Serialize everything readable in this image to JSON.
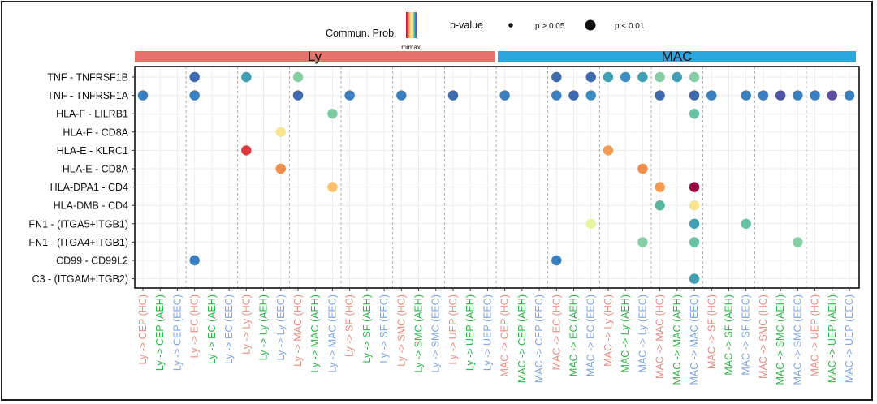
{
  "chart_data": {
    "type": "scatter",
    "subtype": "dot-matrix",
    "legend": {
      "color_title": "Commun. Prob.",
      "color_scale_label": "mimax",
      "size_title": "p-value",
      "size_levels": [
        "p > 0.05",
        "p < 0.01"
      ]
    },
    "groups": [
      {
        "name": "Ly",
        "color": "#e2726a",
        "col_start": 0,
        "col_end": 20
      },
      {
        "name": "MAC",
        "color": "#2aa6dc",
        "col_start": 21,
        "col_end": 41
      }
    ],
    "rows": [
      "TNF - TNFRSF1B",
      "TNF - TNFRSF1A",
      "HLA-F - LILRB1",
      "HLA-F - CD8A",
      "HLA-E - KLRC1",
      "HLA-E - CD8A",
      "HLA-DPA1 - CD4",
      "HLA-DMB - CD4",
      "FN1 - (ITGA5+ITGB1)",
      "FN1 - (ITGA4+ITGB1)",
      "CD99 - CD99L2",
      "C3 - (ITGAM+ITGB2)"
    ],
    "columns": [
      {
        "label": "Ly -> CEP (HC)",
        "color": "#ef8a80"
      },
      {
        "label": "Ly -> CEP (AEH)",
        "color": "#2db84a"
      },
      {
        "label": "Ly -> CEP (EEC)",
        "color": "#7fa6e8"
      },
      {
        "label": "Ly -> EC (HC)",
        "color": "#ef8a80"
      },
      {
        "label": "Ly -> EC (AEH)",
        "color": "#2db84a"
      },
      {
        "label": "Ly -> EC (EEC)",
        "color": "#7fa6e8"
      },
      {
        "label": "Ly -> Ly (HC)",
        "color": "#ef8a80"
      },
      {
        "label": "Ly -> Ly (AEH)",
        "color": "#2db84a"
      },
      {
        "label": "Ly -> Ly (EEC)",
        "color": "#7fa6e8"
      },
      {
        "label": "Ly -> MAC (HC)",
        "color": "#ef8a80"
      },
      {
        "label": "Ly -> MAC (AEH)",
        "color": "#2db84a"
      },
      {
        "label": "Ly -> MAC (EEC)",
        "color": "#7fa6e8"
      },
      {
        "label": "Ly -> SF (HC)",
        "color": "#ef8a80"
      },
      {
        "label": "Ly -> SF (AEH)",
        "color": "#2db84a"
      },
      {
        "label": "Ly -> SF (EEC)",
        "color": "#7fa6e8"
      },
      {
        "label": "Ly -> SMC (HC)",
        "color": "#ef8a80"
      },
      {
        "label": "Ly -> SMC (AEH)",
        "color": "#2db84a"
      },
      {
        "label": "Ly -> SMC (EEC)",
        "color": "#7fa6e8"
      },
      {
        "label": "Ly -> UEP (HC)",
        "color": "#ef8a80"
      },
      {
        "label": "Ly -> UEP (AEH)",
        "color": "#2db84a"
      },
      {
        "label": "Ly -> UEP (EEC)",
        "color": "#7fa6e8"
      },
      {
        "label": "MAC -> CEP (HC)",
        "color": "#ef8a80"
      },
      {
        "label": "MAC -> CEP (AEH)",
        "color": "#2db84a"
      },
      {
        "label": "MAC -> CEP (EEC)",
        "color": "#7fa6e8"
      },
      {
        "label": "MAC -> EC (HC)",
        "color": "#ef8a80"
      },
      {
        "label": "MAC -> EC (AEH)",
        "color": "#2db84a"
      },
      {
        "label": "MAC -> EC (EEC)",
        "color": "#7fa6e8"
      },
      {
        "label": "MAC -> Ly (HC)",
        "color": "#ef8a80"
      },
      {
        "label": "MAC -> Ly (AEH)",
        "color": "#2db84a"
      },
      {
        "label": "MAC -> Ly (EEC)",
        "color": "#7fa6e8"
      },
      {
        "label": "MAC -> MAC (HC)",
        "color": "#ef8a80"
      },
      {
        "label": "MAC -> MAC (AEH)",
        "color": "#2db84a"
      },
      {
        "label": "MAC -> MAC (EEC)",
        "color": "#7fa6e8"
      },
      {
        "label": "MAC -> SF (HC)",
        "color": "#ef8a80"
      },
      {
        "label": "MAC -> SF (AEH)",
        "color": "#2db84a"
      },
      {
        "label": "MAC -> SF (EEC)",
        "color": "#7fa6e8"
      },
      {
        "label": "MAC -> SMC (HC)",
        "color": "#ef8a80"
      },
      {
        "label": "MAC -> SMC (AEH)",
        "color": "#2db84a"
      },
      {
        "label": "MAC -> SMC (EEC)",
        "color": "#7fa6e8"
      },
      {
        "label": "MAC -> UEP (HC)",
        "color": "#ef8a80"
      },
      {
        "label": "MAC -> UEP (AEH)",
        "color": "#2db84a"
      },
      {
        "label": "MAC -> UEP (EEC)",
        "color": "#7fa6e8"
      }
    ],
    "points": [
      {
        "row": 0,
        "col": 3,
        "color": "#3e6bb0",
        "pval": "p < 0.01"
      },
      {
        "row": 0,
        "col": 6,
        "color": "#3f9fb4",
        "pval": "p < 0.01"
      },
      {
        "row": 0,
        "col": 9,
        "color": "#86cfa4",
        "pval": "p < 0.01"
      },
      {
        "row": 0,
        "col": 24,
        "color": "#3e6bb0",
        "pval": "p < 0.01"
      },
      {
        "row": 0,
        "col": 26,
        "color": "#3e6bb0",
        "pval": "p < 0.01"
      },
      {
        "row": 0,
        "col": 27,
        "color": "#3f9fb4",
        "pval": "p < 0.01"
      },
      {
        "row": 0,
        "col": 28,
        "color": "#3a8cc2",
        "pval": "p < 0.01"
      },
      {
        "row": 0,
        "col": 29,
        "color": "#3f9fb4",
        "pval": "p < 0.01"
      },
      {
        "row": 0,
        "col": 30,
        "color": "#86cfa4",
        "pval": "p < 0.01"
      },
      {
        "row": 0,
        "col": 31,
        "color": "#3f9fb4",
        "pval": "p < 0.01"
      },
      {
        "row": 0,
        "col": 32,
        "color": "#86cfa4",
        "pval": "p < 0.01"
      },
      {
        "row": 1,
        "col": 0,
        "color": "#3a80c0",
        "pval": "p < 0.01"
      },
      {
        "row": 1,
        "col": 3,
        "color": "#3a80c0",
        "pval": "p < 0.01"
      },
      {
        "row": 1,
        "col": 9,
        "color": "#3e6bb0",
        "pval": "p < 0.01"
      },
      {
        "row": 1,
        "col": 12,
        "color": "#3a80c0",
        "pval": "p < 0.01"
      },
      {
        "row": 1,
        "col": 15,
        "color": "#3a80c0",
        "pval": "p < 0.01"
      },
      {
        "row": 1,
        "col": 18,
        "color": "#3e6bb0",
        "pval": "p < 0.01"
      },
      {
        "row": 1,
        "col": 21,
        "color": "#3a80c0",
        "pval": "p < 0.01"
      },
      {
        "row": 1,
        "col": 24,
        "color": "#3a80c0",
        "pval": "p < 0.01"
      },
      {
        "row": 1,
        "col": 25,
        "color": "#3e6bb0",
        "pval": "p < 0.01"
      },
      {
        "row": 1,
        "col": 26,
        "color": "#3a8cc2",
        "pval": "p < 0.01"
      },
      {
        "row": 1,
        "col": 30,
        "color": "#3e6bb0",
        "pval": "p < 0.01"
      },
      {
        "row": 1,
        "col": 32,
        "color": "#3e6bb0",
        "pval": "p < 0.01"
      },
      {
        "row": 1,
        "col": 33,
        "color": "#3a80c0",
        "pval": "p < 0.01"
      },
      {
        "row": 1,
        "col": 35,
        "color": "#3a80c0",
        "pval": "p < 0.01"
      },
      {
        "row": 1,
        "col": 36,
        "color": "#3a80c0",
        "pval": "p < 0.01"
      },
      {
        "row": 1,
        "col": 37,
        "color": "#4f55a6",
        "pval": "p < 0.01"
      },
      {
        "row": 1,
        "col": 38,
        "color": "#3a80c0",
        "pval": "p < 0.01"
      },
      {
        "row": 1,
        "col": 39,
        "color": "#3a80c0",
        "pval": "p < 0.01"
      },
      {
        "row": 1,
        "col": 40,
        "color": "#5e4fa2",
        "pval": "p < 0.01"
      },
      {
        "row": 1,
        "col": 41,
        "color": "#3a80c0",
        "pval": "p < 0.01"
      },
      {
        "row": 2,
        "col": 11,
        "color": "#7ccba4",
        "pval": "p < 0.01"
      },
      {
        "row": 2,
        "col": 32,
        "color": "#66c2a5",
        "pval": "p < 0.01"
      },
      {
        "row": 3,
        "col": 8,
        "color": "#f6e58c",
        "pval": "p < 0.01"
      },
      {
        "row": 4,
        "col": 6,
        "color": "#d83c40",
        "pval": "p < 0.01"
      },
      {
        "row": 4,
        "col": 27,
        "color": "#f59a50",
        "pval": "p < 0.01"
      },
      {
        "row": 5,
        "col": 8,
        "color": "#f38b4a",
        "pval": "p < 0.01"
      },
      {
        "row": 5,
        "col": 29,
        "color": "#f38b4a",
        "pval": "p < 0.01"
      },
      {
        "row": 6,
        "col": 11,
        "color": "#fbc270",
        "pval": "p < 0.01"
      },
      {
        "row": 6,
        "col": 30,
        "color": "#f59a50",
        "pval": "p < 0.01"
      },
      {
        "row": 6,
        "col": 32,
        "color": "#9e0142",
        "pval": "p < 0.01"
      },
      {
        "row": 7,
        "col": 30,
        "color": "#55b89c",
        "pval": "p < 0.01"
      },
      {
        "row": 7,
        "col": 32,
        "color": "#fbe58a",
        "pval": "p < 0.01"
      },
      {
        "row": 8,
        "col": 26,
        "color": "#e6f5a0",
        "pval": "p < 0.01"
      },
      {
        "row": 8,
        "col": 32,
        "color": "#3f9fb4",
        "pval": "p < 0.01"
      },
      {
        "row": 8,
        "col": 35,
        "color": "#66c2a5",
        "pval": "p < 0.01"
      },
      {
        "row": 9,
        "col": 29,
        "color": "#86cfa4",
        "pval": "p < 0.01"
      },
      {
        "row": 9,
        "col": 32,
        "color": "#66c2a5",
        "pval": "p < 0.01"
      },
      {
        "row": 9,
        "col": 38,
        "color": "#86cfa4",
        "pval": "p < 0.01"
      },
      {
        "row": 10,
        "col": 3,
        "color": "#3a80c0",
        "pval": "p < 0.01"
      },
      {
        "row": 10,
        "col": 24,
        "color": "#3a80c0",
        "pval": "p < 0.01"
      },
      {
        "row": 11,
        "col": 32,
        "color": "#3f9fb4",
        "pval": "p < 0.01"
      }
    ],
    "colorbar_colors": [
      "#9e0142",
      "#d53e4f",
      "#f46d43",
      "#fdae61",
      "#fee08b",
      "#e6f598",
      "#abdda4",
      "#66c2a5",
      "#3288bd",
      "#5e4fa2"
    ]
  }
}
